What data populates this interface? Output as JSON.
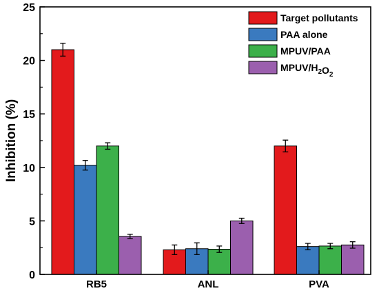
{
  "chart_data": {
    "type": "bar",
    "title": "",
    "xlabel": "",
    "ylabel": "Inhibition (%)",
    "ylim": [
      0,
      25
    ],
    "yticks": [
      0,
      5,
      10,
      15,
      20,
      25
    ],
    "grid": false,
    "legend_position": "top-right",
    "categories": [
      "RB5",
      "ANL",
      "PVA"
    ],
    "series": [
      {
        "name": "Target pollutants",
        "color": "#e31a1c",
        "values": [
          21.0,
          2.3,
          12.0
        ],
        "errors": [
          0.6,
          0.45,
          0.55
        ]
      },
      {
        "name": "PAA alone",
        "color": "#3a7abf",
        "values": [
          10.2,
          2.4,
          2.6
        ],
        "errors": [
          0.45,
          0.55,
          0.3
        ]
      },
      {
        "name": "MPUV/PAA",
        "color": "#3cb04a",
        "values": [
          12.0,
          2.35,
          2.65
        ],
        "errors": [
          0.3,
          0.3,
          0.25
        ]
      },
      {
        "name": "MPUV/H2O2",
        "color": "#9b5fae",
        "values": [
          3.55,
          5.0,
          2.75
        ],
        "errors": [
          0.2,
          0.25,
          0.3
        ]
      }
    ]
  }
}
